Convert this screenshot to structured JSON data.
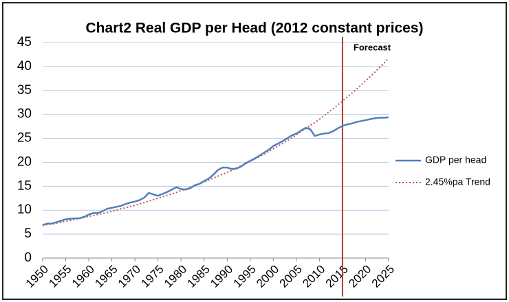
{
  "chart_data": {
    "type": "line",
    "title": "Chart2 Real GDP per Head (2012 constant prices)",
    "annotation": "Forecast",
    "forecast_x": 2015,
    "x": [
      1950,
      1951,
      1952,
      1953,
      1954,
      1955,
      1956,
      1957,
      1958,
      1959,
      1960,
      1961,
      1962,
      1963,
      1964,
      1965,
      1966,
      1967,
      1968,
      1969,
      1970,
      1971,
      1972,
      1973,
      1974,
      1975,
      1976,
      1977,
      1978,
      1979,
      1980,
      1981,
      1982,
      1983,
      1984,
      1985,
      1986,
      1987,
      1988,
      1989,
      1990,
      1991,
      1992,
      1993,
      1994,
      1995,
      1996,
      1997,
      1998,
      1999,
      2000,
      2001,
      2002,
      2003,
      2004,
      2005,
      2006,
      2007,
      2008,
      2009,
      2010,
      2011,
      2012,
      2013,
      2014,
      2015,
      2016,
      2017,
      2018,
      2019,
      2020,
      2021,
      2022,
      2023,
      2024,
      2025
    ],
    "series": [
      {
        "name": "GDP per head",
        "color": "#4f81bd",
        "dash": "solid",
        "values": [
          6.9,
          7.2,
          7.2,
          7.5,
          7.8,
          8.1,
          8.2,
          8.3,
          8.3,
          8.6,
          9.1,
          9.4,
          9.4,
          9.8,
          10.3,
          10.5,
          10.7,
          10.9,
          11.3,
          11.6,
          11.8,
          12.1,
          12.6,
          13.6,
          13.3,
          13.0,
          13.4,
          13.8,
          14.3,
          14.8,
          14.4,
          14.3,
          14.6,
          15.2,
          15.5,
          16.1,
          16.6,
          17.4,
          18.4,
          18.9,
          18.9,
          18.6,
          18.7,
          19.1,
          19.8,
          20.3,
          20.8,
          21.4,
          22.0,
          22.6,
          23.4,
          23.9,
          24.4,
          25.0,
          25.6,
          26.0,
          26.6,
          27.2,
          26.9,
          25.5,
          25.8,
          26.0,
          26.1,
          26.5,
          27.1,
          27.6,
          27.9,
          28.1,
          28.4,
          28.6,
          28.8,
          29.0,
          29.2,
          29.3,
          29.3,
          29.4
        ]
      },
      {
        "name": "2.45%pa Trend",
        "color": "#c0504d",
        "dash": "dotted",
        "values": [
          6.8,
          7.0,
          7.1,
          7.3,
          7.5,
          7.7,
          7.9,
          8.1,
          8.3,
          8.5,
          8.7,
          8.9,
          9.1,
          9.3,
          9.5,
          9.8,
          10.0,
          10.3,
          10.5,
          10.8,
          11.0,
          11.3,
          11.6,
          11.9,
          12.2,
          12.5,
          12.8,
          13.1,
          13.4,
          13.7,
          14.1,
          14.4,
          14.8,
          15.1,
          15.5,
          15.9,
          16.3,
          16.7,
          17.1,
          17.5,
          17.9,
          18.3,
          18.8,
          19.3,
          19.7,
          20.2,
          20.7,
          21.2,
          21.7,
          22.3,
          22.8,
          23.4,
          23.9,
          24.5,
          25.1,
          25.7,
          26.4,
          27.0,
          27.7,
          28.3,
          29.0,
          29.7,
          30.5,
          31.2,
          32.0,
          32.8,
          33.6,
          34.4,
          35.2,
          36.1,
          37.0,
          37.9,
          38.8,
          39.8,
          40.7,
          41.7
        ]
      }
    ],
    "xlim": [
      1950,
      2025
    ],
    "xticks": [
      1950,
      1955,
      1960,
      1965,
      1970,
      1975,
      1980,
      1985,
      1990,
      1995,
      2000,
      2005,
      2010,
      2015,
      2020,
      2025
    ],
    "ylim": [
      0,
      45
    ],
    "yticks": [
      0,
      5,
      10,
      15,
      20,
      25,
      30,
      35,
      40,
      45
    ],
    "grid": true,
    "legend": "right"
  }
}
